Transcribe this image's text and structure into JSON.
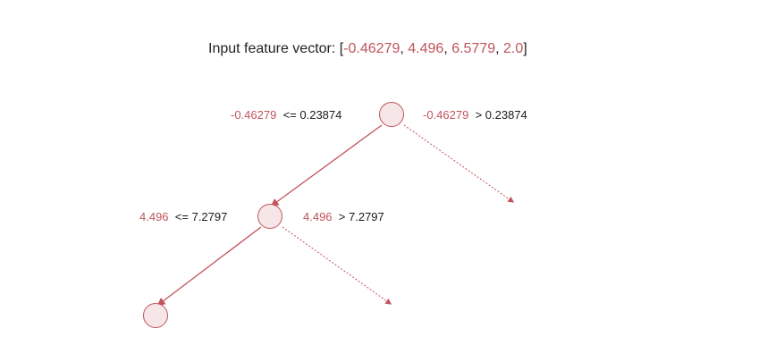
{
  "title": {
    "prefix": "Input feature vector: ",
    "open": "[",
    "values": [
      "-0.46279",
      "4.496",
      "6.5779",
      "2.0"
    ],
    "sep": ", ",
    "close": "]"
  },
  "nodes": [
    {
      "id": "root",
      "left": {
        "value": "-0.46279",
        "op": "<=",
        "threshold": "0.23874"
      },
      "right": {
        "value": "-0.46279",
        "op": ">",
        "threshold": "0.23874"
      }
    },
    {
      "id": "node-2",
      "left": {
        "value": "4.496",
        "op": "<=",
        "threshold": "7.2797"
      },
      "right": {
        "value": "4.496",
        "op": ">",
        "threshold": "7.2797"
      }
    },
    {
      "id": "node-3"
    }
  ],
  "colors": {
    "accent": "#c0545c",
    "node_fill": "#f6e6e7",
    "text": "#1a1a1a",
    "background": "#ffffff"
  }
}
